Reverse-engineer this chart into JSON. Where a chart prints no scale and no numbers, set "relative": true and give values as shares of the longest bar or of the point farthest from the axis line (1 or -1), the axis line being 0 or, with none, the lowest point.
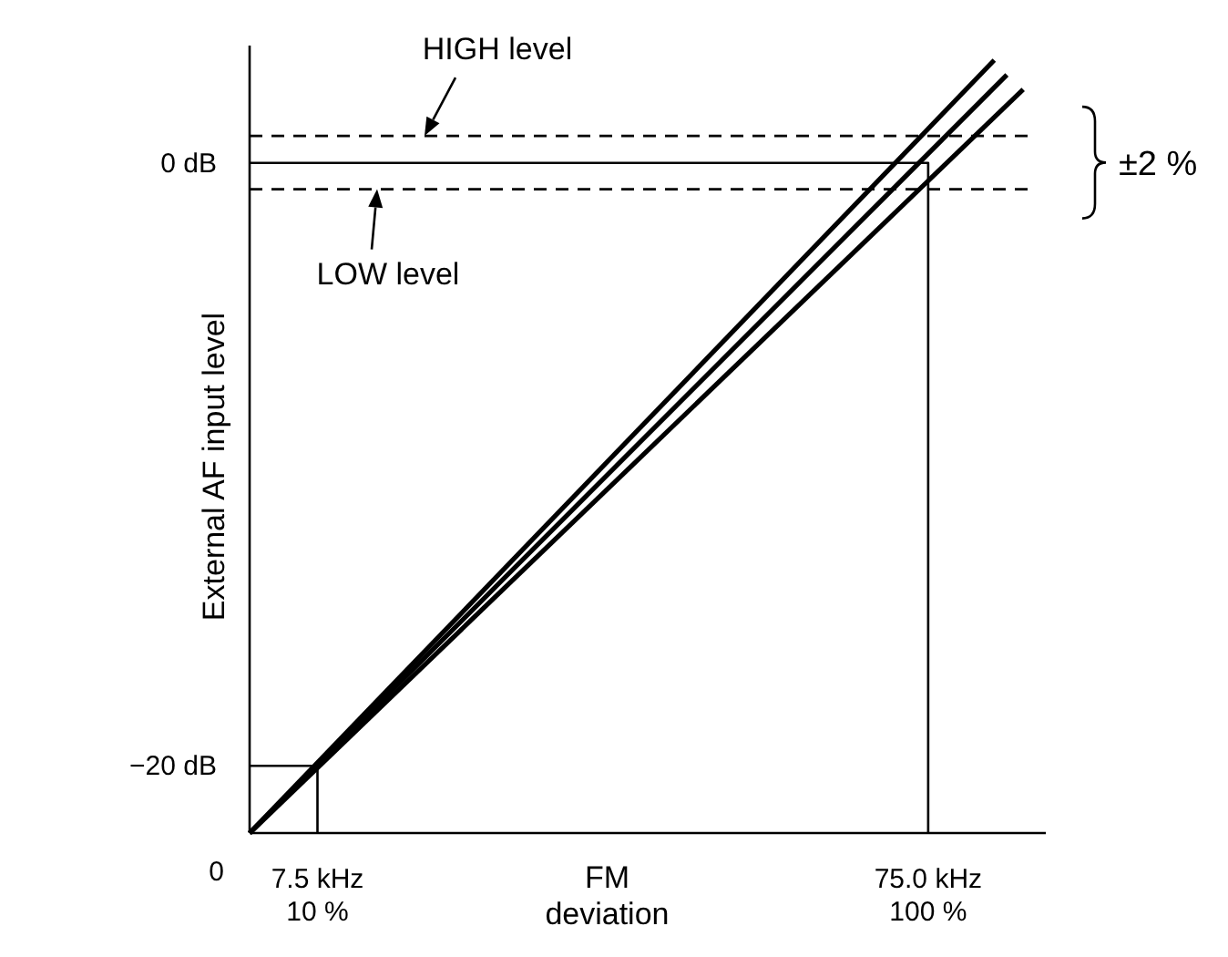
{
  "chart_data": {
    "type": "line",
    "xlabel": "FM deviation",
    "ylabel": "External AF input level",
    "relative": true,
    "xlim": [
      0,
      88
    ],
    "xticks": [
      {
        "value": 7.5,
        "label": "7.5 kHz"
      },
      {
        "value": 75,
        "label": "75.0 kHz"
      }
    ],
    "series": [
      {
        "color": "#000000",
        "x": [
          0,
          82.3
        ],
        "values": [
          0,
          1
        ]
      },
      {
        "color": "#000000",
        "x": [
          0,
          83.7
        ],
        "values": [
          0,
          0.981
        ]
      },
      {
        "color": "#000000",
        "x": [
          0,
          85.5
        ],
        "values": [
          0,
          0.962
        ]
      },
      {
        "color": "#000000",
        "x": [
          0,
          75,
          75
        ],
        "values": [
          0.867,
          0.867,
          0
        ]
      },
      {
        "color": "#000000",
        "x": [
          0,
          7.5,
          7.5
        ],
        "values": [
          0.087,
          0.087,
          0
        ]
      }
    ],
    "ref_lines": [
      {
        "axis": "y",
        "value": 0.902,
        "line_style": "dashed",
        "color": "#000000"
      },
      {
        "axis": "y",
        "value": 0.833,
        "line_style": "dashed",
        "color": "#000000"
      }
    ],
    "annotations": [
      {
        "text": "HIGH level",
        "y": 0.902
      },
      {
        "text": "LOW level",
        "y": 0.833
      },
      "0 dB",
      "−20 dB",
      "0",
      "10 %",
      "100 %",
      "±2 %"
    ],
    "marker": "none"
  }
}
